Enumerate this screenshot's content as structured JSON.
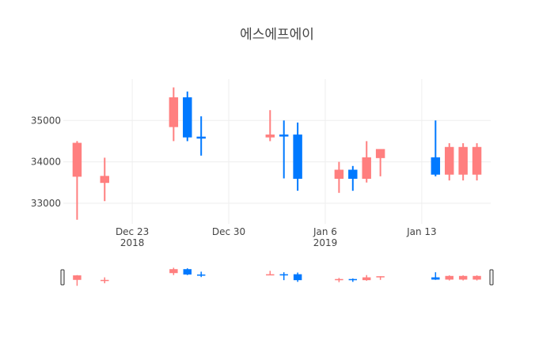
{
  "chart_data": {
    "type": "candlestick",
    "title": "에스에프에이",
    "xlabel": "",
    "ylabel": "",
    "ylim": [
      32500,
      36000
    ],
    "yticks": [
      33000,
      34000,
      35000
    ],
    "xticks": [
      {
        "date": "2018-12-23",
        "label": "Dec 23",
        "sub": "2018"
      },
      {
        "date": "2018-12-30",
        "label": "Dec 30",
        "sub": ""
      },
      {
        "date": "2019-01-06",
        "label": "Jan 6",
        "sub": "2019"
      },
      {
        "date": "2019-01-13",
        "label": "Jan 13",
        "sub": ""
      }
    ],
    "xrange": [
      "2018-12-18",
      "2019-01-18"
    ],
    "grid": true,
    "increasing_color": "#0079ff",
    "decreasing_color": "#ff7f7f",
    "rangeslider": true,
    "ohlc": [
      {
        "date": "2018-12-19",
        "open": 34450,
        "high": 34500,
        "low": 32600,
        "close": 33650
      },
      {
        "date": "2018-12-21",
        "open": 33650,
        "high": 34100,
        "low": 33050,
        "close": 33500
      },
      {
        "date": "2018-12-26",
        "open": 35550,
        "high": 35800,
        "low": 34500,
        "close": 34850
      },
      {
        "date": "2018-12-27",
        "open": 34600,
        "high": 35700,
        "low": 34500,
        "close": 35550
      },
      {
        "date": "2018-12-28",
        "open": 34600,
        "high": 35100,
        "low": 34150,
        "close": 34600
      },
      {
        "date": "2019-01-02",
        "open": 34650,
        "high": 35250,
        "low": 34500,
        "close": 34600
      },
      {
        "date": "2019-01-03",
        "open": 34650,
        "high": 35000,
        "low": 33600,
        "close": 34650
      },
      {
        "date": "2019-01-04",
        "open": 33600,
        "high": 34950,
        "low": 33300,
        "close": 34650
      },
      {
        "date": "2019-01-07",
        "open": 33800,
        "high": 34000,
        "low": 33250,
        "close": 33600
      },
      {
        "date": "2019-01-08",
        "open": 33600,
        "high": 33900,
        "low": 33300,
        "close": 33800
      },
      {
        "date": "2019-01-09",
        "open": 34100,
        "high": 34500,
        "low": 33500,
        "close": 33600
      },
      {
        "date": "2019-01-10",
        "open": 34300,
        "high": 34300,
        "low": 33650,
        "close": 34100
      },
      {
        "date": "2019-01-14",
        "open": 33700,
        "high": 35000,
        "low": 33650,
        "close": 34100
      },
      {
        "date": "2019-01-15",
        "open": 34350,
        "high": 34450,
        "low": 33550,
        "close": 33700
      },
      {
        "date": "2019-01-16",
        "open": 34350,
        "high": 34450,
        "low": 33550,
        "close": 33700
      },
      {
        "date": "2019-01-17",
        "open": 34350,
        "high": 34450,
        "low": 33550,
        "close": 33700
      }
    ]
  }
}
